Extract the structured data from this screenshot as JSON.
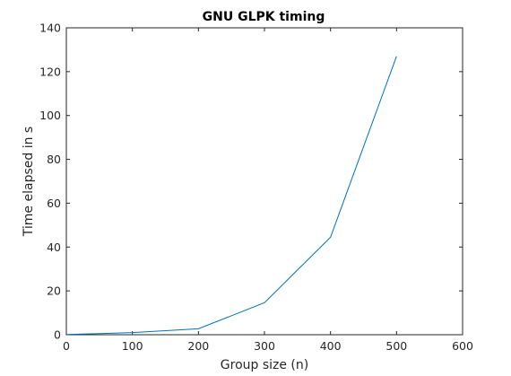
{
  "chart_data": {
    "type": "line",
    "title": "GNU GLPK timing",
    "xlabel": "Group size (n)",
    "ylabel": "Time elapsed in s",
    "xlim": [
      0,
      600
    ],
    "ylim": [
      0,
      140
    ],
    "xticks": [
      0,
      100,
      200,
      300,
      400,
      500,
      600
    ],
    "yticks": [
      0,
      20,
      40,
      60,
      80,
      100,
      120,
      140
    ],
    "grid": false,
    "series": [
      {
        "color": "#0072bd",
        "x": [
          2,
          10,
          50,
          100,
          200,
          300,
          350,
          400,
          500
        ],
        "y": [
          0.1,
          0.2,
          0.5,
          1.0,
          2.7,
          14.6,
          29.5,
          44.5,
          127
        ]
      }
    ]
  }
}
